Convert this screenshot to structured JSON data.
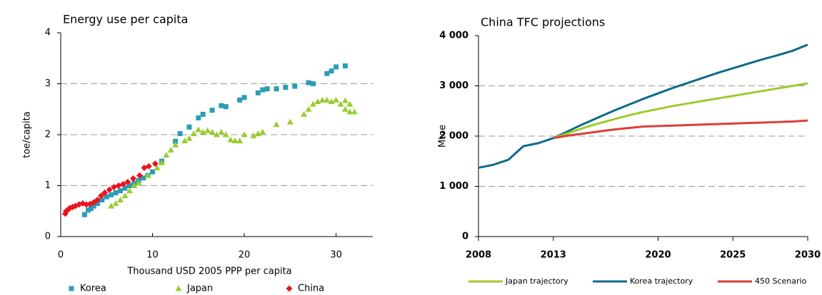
{
  "chart_data": [
    {
      "type": "scatter",
      "title": "Energy use per capita",
      "x_label": "Thousand USD 2005 PPP per capita",
      "y_label": "toe/capita",
      "xlim": [
        0,
        34
      ],
      "xticks": [
        0,
        10,
        20,
        30
      ],
      "ylim": [
        0,
        4
      ],
      "yticks": [
        0,
        1,
        2,
        3,
        4
      ],
      "grid": true,
      "series": [
        {
          "name": "Korea",
          "color": "#2a9cb8",
          "marker": "square",
          "x": [
            2.6,
            3.0,
            3.3,
            3.6,
            4,
            4.5,
            5,
            5.5,
            6,
            6.5,
            7,
            7.5,
            8,
            8.5,
            9,
            9.5,
            10,
            11,
            12.5,
            13,
            14,
            15,
            15.5,
            16.5,
            17.5,
            18,
            19.5,
            20,
            21.5,
            22,
            22.5,
            23.5,
            24.5,
            25.5,
            27,
            27.5,
            29,
            29.5,
            30,
            31
          ],
          "values": [
            0.43,
            0.52,
            0.55,
            0.6,
            0.65,
            0.72,
            0.78,
            0.82,
            0.86,
            0.9,
            0.95,
            1.0,
            1.05,
            1.1,
            1.15,
            1.2,
            1.27,
            1.48,
            1.87,
            2.02,
            2.15,
            2.33,
            2.4,
            2.48,
            2.57,
            2.55,
            2.68,
            2.73,
            2.82,
            2.88,
            2.9,
            2.9,
            2.93,
            2.95,
            3.02,
            3.0,
            3.2,
            3.25,
            3.33,
            3.35
          ]
        },
        {
          "name": "Japan",
          "color": "#99cc33",
          "marker": "triangle",
          "x": [
            5.5,
            6,
            6.5,
            7,
            7.5,
            8,
            8.5,
            9.5,
            10.5,
            11,
            11.5,
            12,
            12.5,
            13.5,
            14,
            14.5,
            15,
            15.5,
            16,
            16.5,
            17,
            17.5,
            18,
            18.5,
            19,
            19.5,
            20,
            21,
            21.5,
            22,
            23.5,
            25,
            26.5,
            27,
            27.5,
            28,
            28.5,
            29,
            29.5,
            30,
            30.5,
            31,
            31.5,
            32,
            31,
            31.5
          ],
          "values": [
            0.6,
            0.65,
            0.72,
            0.8,
            0.9,
            1.0,
            1.05,
            1.2,
            1.35,
            1.45,
            1.6,
            1.7,
            1.8,
            1.88,
            1.93,
            2.02,
            2.1,
            2.05,
            2.08,
            2.05,
            2.0,
            2.05,
            2.0,
            1.9,
            1.88,
            1.88,
            2.0,
            1.98,
            2.02,
            2.05,
            2.2,
            2.25,
            2.4,
            2.5,
            2.6,
            2.65,
            2.68,
            2.68,
            2.65,
            2.68,
            2.6,
            2.5,
            2.45,
            2.45,
            2.67,
            2.6
          ]
        },
        {
          "name": "China",
          "color": "#e8141c",
          "marker": "diamond",
          "x": [
            0.5,
            0.6,
            0.8,
            1,
            1.3,
            1.6,
            2,
            2.4,
            2.8,
            3.2,
            3.6,
            4,
            4.4,
            4.8,
            5.3,
            5.8,
            6.3,
            6.8,
            7.3,
            7.9,
            8.6,
            9.1,
            9.6,
            10.3
          ],
          "values": [
            0.45,
            0.5,
            0.53,
            0.56,
            0.58,
            0.6,
            0.63,
            0.65,
            0.63,
            0.64,
            0.67,
            0.72,
            0.8,
            0.86,
            0.92,
            0.97,
            1.0,
            1.03,
            1.07,
            1.14,
            1.2,
            1.35,
            1.38,
            1.43
          ]
        }
      ]
    },
    {
      "type": "line",
      "title": "China TFC projections",
      "y_label": "Mtoe",
      "x": [
        2008,
        2009,
        2010,
        2011,
        2012,
        2013,
        2014,
        2015,
        2016,
        2017,
        2018,
        2019,
        2020,
        2021,
        2022,
        2023,
        2024,
        2025,
        2026,
        2027,
        2028,
        2029,
        2030
      ],
      "xlim": [
        2008,
        2030
      ],
      "xticks": [
        2008,
        2013,
        2020,
        2025,
        2030
      ],
      "ylim": [
        0,
        4000
      ],
      "yticks": [
        0,
        {
          "value": 1000,
          "label": "1 000"
        },
        {
          "value": 2000,
          "label": "2 000"
        },
        {
          "value": 3000,
          "label": "3 000"
        },
        {
          "value": 4000,
          "label": "4 000"
        }
      ],
      "grid": true,
      "series": [
        {
          "name": "Korea trajectory",
          "color": "#0e6a8a",
          "values": [
            1370,
            1430,
            1530,
            1800,
            1860,
            1960,
            2100,
            2240,
            2370,
            2500,
            2620,
            2740,
            2850,
            2960,
            3060,
            3160,
            3260,
            3350,
            3440,
            3530,
            3610,
            3700,
            3820
          ]
        },
        {
          "name": "Japan trajectory",
          "color": "#9dcb2d",
          "values": [
            null,
            null,
            null,
            null,
            null,
            1960,
            2060,
            2160,
            2250,
            2330,
            2410,
            2480,
            2540,
            2600,
            2650,
            2700,
            2750,
            2800,
            2850,
            2900,
            2950,
            3000,
            3050
          ]
        },
        {
          "name": "450 Scenario",
          "color": "#d9403a",
          "values": [
            null,
            null,
            null,
            null,
            null,
            1960,
            2010,
            2050,
            2090,
            2130,
            2160,
            2190,
            2200,
            2210,
            2220,
            2230,
            2240,
            2250,
            2260,
            2270,
            2280,
            2290,
            2310
          ]
        }
      ]
    }
  ]
}
